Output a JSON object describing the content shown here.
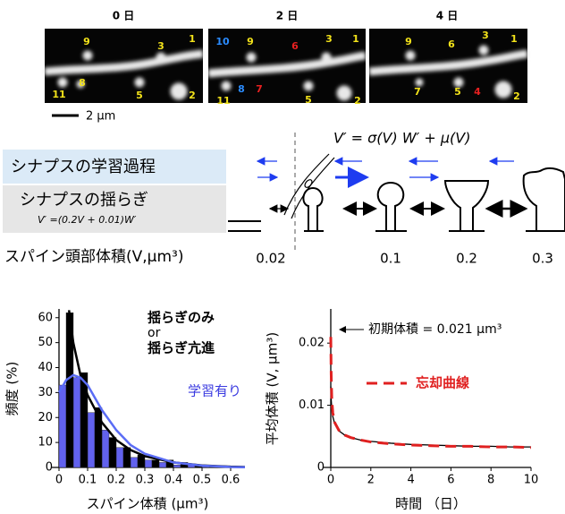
{
  "images": [
    {
      "title": "0 日",
      "labels": [
        "9",
        "3",
        "1",
        "8",
        "11",
        "5",
        "2"
      ]
    },
    {
      "title": "2 日",
      "labels": [
        "10",
        "9",
        "6",
        "3",
        "1",
        "8",
        "7",
        "11",
        "5",
        "2"
      ]
    },
    {
      "title": "4 日",
      "labels": [
        "9",
        "6",
        "3",
        "1",
        "7",
        "5",
        "4",
        "2"
      ]
    }
  ],
  "scale_bar": "2 μm",
  "diagram": {
    "model_equation": "V′ = σ(V) W′ + μ(V)",
    "learning": "シナプスの学習過程",
    "fluctuation": "シナプスの揺らぎ",
    "fluctuation_equation": "V′ =(0.2V + 0.01)W′",
    "axis_label": "スパイン頭部体積(V,μm³)",
    "scale_labels": [
      "0.02",
      "0.1",
      "0.2",
      "0.3"
    ]
  },
  "chart_data": [
    {
      "type": "histogram",
      "xlabel": "スパイン体積 (μm³)",
      "ylabel": "頻度 (%)",
      "bins": [
        0,
        0.05,
        0.1,
        0.15,
        0.2,
        0.25,
        0.3,
        0.35,
        0.4,
        0.45,
        0.5,
        0.55
      ],
      "series": [
        {
          "color": "#6262ee",
          "values": [
            33,
            36,
            22,
            15,
            8,
            4,
            3,
            2,
            1,
            1,
            0.5
          ]
        },
        {
          "color": "#000000",
          "values": [
            62,
            38,
            24,
            12,
            8,
            5,
            3,
            3,
            2,
            1,
            0.5
          ]
        }
      ],
      "curves": [
        {
          "color": "#000000",
          "x": [
            0.035,
            0.05,
            0.075,
            0.1,
            0.15,
            0.2,
            0.25,
            0.3,
            0.4,
            0.5,
            0.6,
            0.65
          ],
          "values": [
            63,
            50,
            37,
            29,
            18,
            11,
            7,
            4.5,
            2,
            0.8,
            0.3,
            0.2
          ]
        },
        {
          "color": "#5a6cf5",
          "x": [
            0,
            0.025,
            0.05,
            0.075,
            0.1,
            0.15,
            0.2,
            0.25,
            0.3,
            0.4,
            0.5,
            0.6,
            0.65
          ],
          "values": [
            30,
            35,
            37,
            36,
            33,
            23,
            15,
            9,
            5.5,
            2,
            0.7,
            0.2,
            0.1
          ]
        }
      ],
      "annotations": [
        {
          "text": "揺らぎのみ",
          "color": "#000000"
        },
        {
          "text": "or",
          "color": "#000000"
        },
        {
          "text": "揺らぎ亢進",
          "color": "#000000"
        },
        {
          "text": "学習有り",
          "color": "#3a3ae0"
        }
      ],
      "xlim": [
        0,
        0.65
      ],
      "ylim": [
        0,
        63.5
      ],
      "xticks": [
        0,
        0.1,
        0.2,
        0.3,
        0.4,
        0.5,
        0.6
      ],
      "yticks": [
        0,
        10,
        20,
        30,
        40,
        50,
        60
      ]
    },
    {
      "type": "line",
      "xlabel": "時間 （日）",
      "ylabel": "平均体積 (V, μm³)",
      "x": [
        0,
        0.02,
        0.05,
        0.1,
        0.2,
        0.4,
        0.7,
        1,
        1.5,
        2,
        3,
        4,
        5,
        6,
        7,
        8,
        9,
        10
      ],
      "series": [
        {
          "color": "#000000",
          "values": [
            0.013,
            0.011,
            0.0095,
            0.0082,
            0.007,
            0.0059,
            0.0052,
            0.0048,
            0.0044,
            0.0042,
            0.0039,
            0.0037,
            0.0036,
            0.0035,
            0.0034,
            0.0034,
            0.0033,
            0.0033
          ]
        },
        {
          "name": "忘却曲線",
          "color": "#e02020",
          "dashed": true,
          "values": [
            0.021,
            0.015,
            0.011,
            0.0088,
            0.0072,
            0.006,
            0.0052,
            0.0048,
            0.0044,
            0.0041,
            0.0038,
            0.0036,
            0.0035,
            0.0034,
            0.0034,
            0.0033,
            0.0033,
            0.0032
          ]
        }
      ],
      "annotation": "初期体積 = 0.021 μm³",
      "xlim": [
        0,
        10
      ],
      "ylim": [
        0,
        0.0255
      ],
      "xticks": [
        0,
        2,
        4,
        6,
        8,
        10
      ],
      "yticks": [
        0,
        0.01,
        0.02
      ]
    }
  ]
}
